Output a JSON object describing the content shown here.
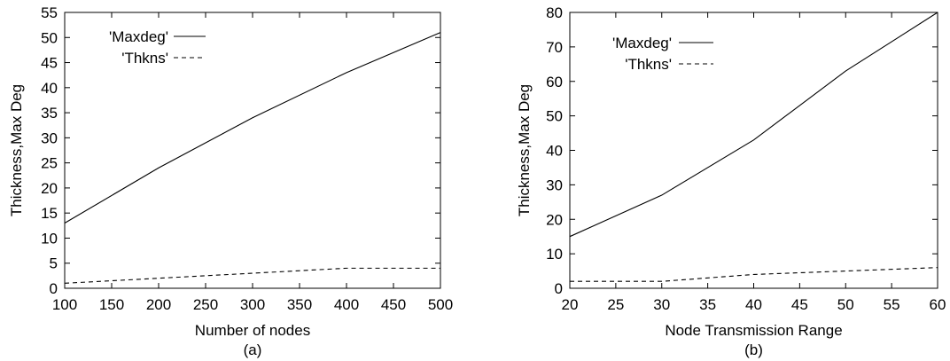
{
  "chart_data": [
    {
      "type": "line",
      "panel_label": "(a)",
      "xlabel": "Number of nodes",
      "ylabel": "Thickness,Max Deg",
      "xlim": [
        100,
        500
      ],
      "ylim": [
        0,
        55
      ],
      "xticks": [
        100,
        150,
        200,
        250,
        300,
        350,
        400,
        450,
        500
      ],
      "yticks": [
        0,
        5,
        10,
        15,
        20,
        25,
        30,
        35,
        40,
        45,
        50,
        55
      ],
      "grid": false,
      "legend_position": "top-left",
      "series": [
        {
          "name": "'Maxdeg'",
          "style": "solid",
          "x": [
            100,
            200,
            300,
            400,
            500
          ],
          "y": [
            13,
            24,
            34,
            43,
            51
          ]
        },
        {
          "name": "'Thkns'",
          "style": "dashed",
          "x": [
            100,
            200,
            300,
            400,
            500
          ],
          "y": [
            1,
            2,
            3,
            4,
            4
          ]
        }
      ]
    },
    {
      "type": "line",
      "panel_label": "(b)",
      "xlabel": "Node Transmission Range",
      "ylabel": "Thickness,Max Deg",
      "xlim": [
        20,
        60
      ],
      "ylim": [
        0,
        80
      ],
      "xticks": [
        20,
        25,
        30,
        35,
        40,
        45,
        50,
        55,
        60
      ],
      "yticks": [
        0,
        10,
        20,
        30,
        40,
        50,
        60,
        70,
        80
      ],
      "grid": false,
      "legend_position": "top-left",
      "series": [
        {
          "name": "'Maxdeg'",
          "style": "solid",
          "x": [
            20,
            30,
            40,
            50,
            60
          ],
          "y": [
            15,
            27,
            43,
            63,
            80
          ]
        },
        {
          "name": "'Thkns'",
          "style": "dashed",
          "x": [
            20,
            30,
            40,
            50,
            60
          ],
          "y": [
            2,
            2,
            4,
            5,
            6
          ]
        }
      ]
    }
  ]
}
